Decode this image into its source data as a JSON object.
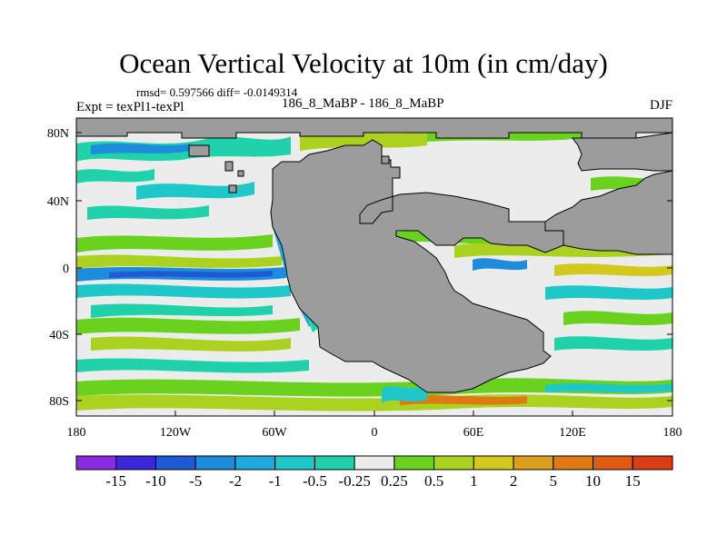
{
  "title": "Ocean Vertical Velocity at 10m (in cm/day)",
  "stats": "rmsd= 0.597566 diff= -0.0149314",
  "expt": "Expt = texPl1-texPl",
  "runs": "186_8_MaBP - 186_8_MaBP",
  "season": "DJF",
  "axes": {
    "lat_ticks": [
      "80N",
      "40N",
      "0",
      "40S",
      "80S"
    ],
    "lon_ticks": [
      "180",
      "120W",
      "60W",
      "0",
      "60E",
      "120E",
      "180"
    ]
  },
  "colorbar": {
    "labels": [
      "-15",
      "-10",
      "-5",
      "-2",
      "-1",
      "-0.5",
      "-0.25",
      "0.25",
      "0.5",
      "1",
      "2",
      "5",
      "10",
      "15"
    ],
    "colors": [
      "#8a2be2",
      "#3c28d8",
      "#1e5ad2",
      "#1e8cdc",
      "#1eaadc",
      "#1ec8c8",
      "#20d2aa",
      "#ececec",
      "#6ad21e",
      "#aad21e",
      "#d2c81e",
      "#dca01e",
      "#e07814",
      "#e05a14",
      "#dc3c14"
    ]
  },
  "land_color": "#9c9c9c",
  "ocean_color": "#ececec"
}
